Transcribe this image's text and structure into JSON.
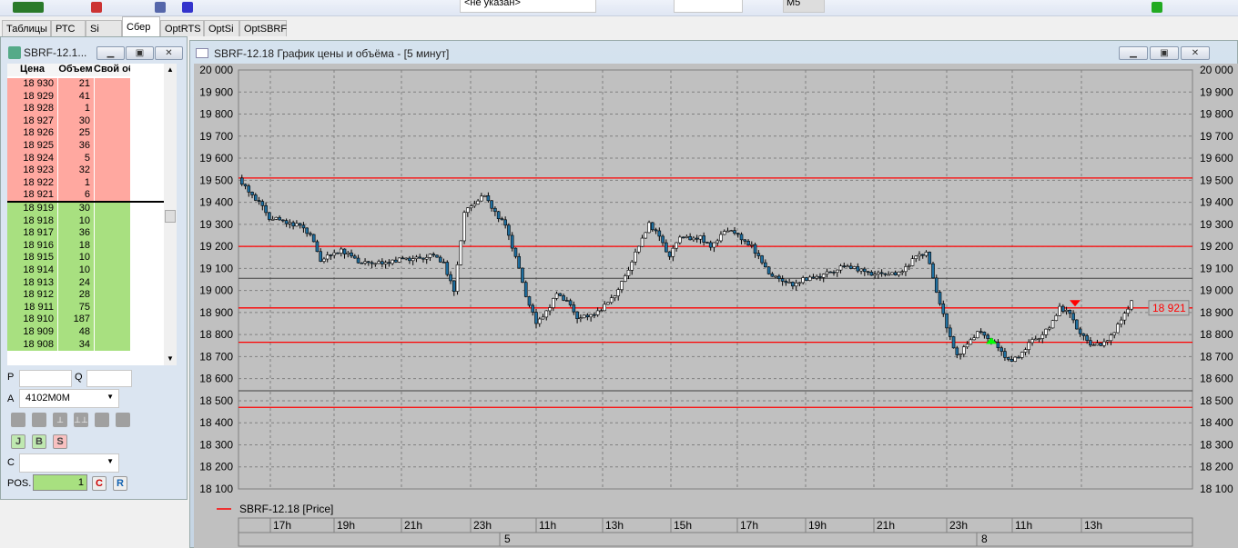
{
  "toolbar": {
    "instrument_select": "<не указан>",
    "small_select": "M5"
  },
  "tabs": [
    "Таблицы",
    "РТС",
    "Si",
    "Сбер",
    "OptRTS",
    "OptSi",
    "OptSBRF"
  ],
  "active_tab": "Сбер",
  "order_book": {
    "title": "SBRF-12.1...",
    "headers": [
      "Цена",
      "Объем",
      "Свой об"
    ],
    "asks": [
      [
        "18 930",
        "21"
      ],
      [
        "18 929",
        "41"
      ],
      [
        "18 928",
        "1"
      ],
      [
        "18 927",
        "30"
      ],
      [
        "18 926",
        "25"
      ],
      [
        "18 925",
        "36"
      ],
      [
        "18 924",
        "5"
      ],
      [
        "18 923",
        "32"
      ],
      [
        "18 922",
        "1"
      ],
      [
        "18 921",
        "6"
      ]
    ],
    "bids": [
      [
        "18 919",
        "30"
      ],
      [
        "18 918",
        "10"
      ],
      [
        "18 917",
        "36"
      ],
      [
        "18 916",
        "18"
      ],
      [
        "18 915",
        "10"
      ],
      [
        "18 914",
        "10"
      ],
      [
        "18 913",
        "24"
      ],
      [
        "18 912",
        "28"
      ],
      [
        "18 911",
        "75"
      ],
      [
        "18 910",
        "187"
      ],
      [
        "18 909",
        "48"
      ],
      [
        "18 908",
        "34"
      ]
    ],
    "colors": {
      "ask": "#ffa8a0",
      "bid": "#a8e080"
    }
  },
  "form": {
    "p_label": "P",
    "q_label": "Q",
    "a_label": "A",
    "account": "4102M0M",
    "c_label": "C",
    "c_value": "",
    "pos_label": "POS.",
    "pos_value": "1",
    "btn_c": "C",
    "btn_r": "R"
  },
  "chart": {
    "title": "SBRF-12.18 График цены и объёма - [5 минут]",
    "legend": "SBRF-12.18 [Price]",
    "last_price": "18 921"
  },
  "chart_data": {
    "type": "candlestick",
    "ylim": [
      18100,
      20000
    ],
    "yticks": [
      20000,
      19900,
      19800,
      19700,
      19600,
      19500,
      19400,
      19300,
      19200,
      19100,
      19000,
      18900,
      18800,
      18700,
      18600,
      18500,
      18400,
      18300,
      18200,
      18100
    ],
    "ytick_labels": [
      "20 000",
      "19 900",
      "19 800",
      "19 700",
      "19 600",
      "19 500",
      "19 400",
      "19 300",
      "19 200",
      "19 100",
      "19 000",
      "18 900",
      "18 800",
      "18 700",
      "18 600",
      "18 500",
      "18 400",
      "18 300",
      "18 200",
      "18 100"
    ],
    "xticks": [
      "17h",
      "19h",
      "21h",
      "23h",
      "11h",
      "13h",
      "15h",
      "17h",
      "19h",
      "21h",
      "23h",
      "11h",
      "13h"
    ],
    "day_labels": [
      "5",
      "8"
    ],
    "red_levels": [
      19510,
      19200,
      18921,
      18765,
      18470
    ],
    "gray_levels": [
      19055,
      18545
    ],
    "closes": [
      19510,
      19450,
      19400,
      19330,
      19320,
      19300,
      19300,
      19250,
      19140,
      19160,
      19180,
      19160,
      19120,
      19130,
      19120,
      19130,
      19150,
      19140,
      19150,
      19160,
      19120,
      19000,
      19350,
      19400,
      19430,
      19350,
      19300,
      19150,
      18980,
      18850,
      18900,
      18990,
      18950,
      18880,
      18880,
      18900,
      18950,
      19000,
      19100,
      19200,
      19300,
      19250,
      19150,
      19250,
      19230,
      19240,
      19200,
      19250,
      19280,
      19230,
      19200,
      19130,
      19060,
      19050,
      19020,
      19050,
      19060,
      19070,
      19090,
      19110,
      19100,
      19090,
      19070,
      19080,
      19070,
      19100,
      19160,
      19170,
      19000,
      18830,
      18700,
      18760,
      18810,
      18790,
      18740,
      18680,
      18700,
      18760,
      18790,
      18830,
      18920,
      18900,
      18800,
      18760,
      18750,
      18790,
      18870,
      18950
    ],
    "sell_marker_price": 18940,
    "buy_marker_price": 18770,
    "colors": {
      "up": "#ffffff",
      "down": "#1f6fa0",
      "level": "#ff0000",
      "sell": "#ff0000",
      "buy": "#00ff00"
    }
  }
}
